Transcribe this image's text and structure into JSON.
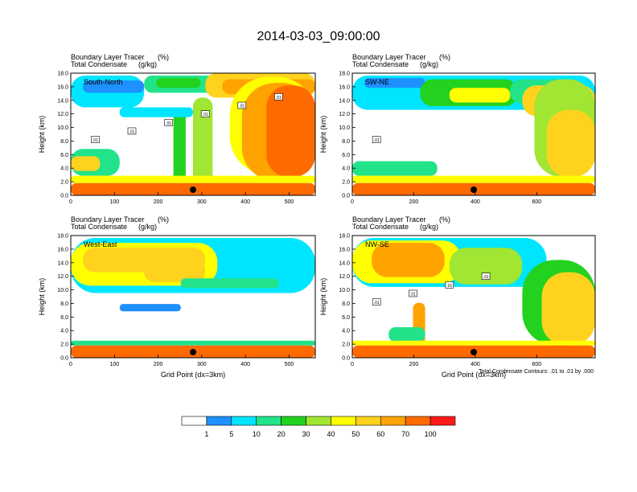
{
  "figure": {
    "title": "2014-03-03_09:00:00",
    "contour_note": "Total Condensate Contours: .01 to .01 by .000"
  },
  "colors": {
    "levels": [
      "#ffffff",
      "#1e90ff",
      "#00e5ff",
      "#22e38a",
      "#22d21e",
      "#a0e632",
      "#ffff00",
      "#ffd21e",
      "#ffa300",
      "#ff6a00",
      "#ff1a1a"
    ]
  },
  "colorbar": {
    "labels": [
      "1",
      "5",
      "10",
      "20",
      "30",
      "40",
      "50",
      "60",
      "70",
      "100"
    ]
  },
  "chart_data": [
    {
      "type": "heatmap",
      "panel_label": "South-North",
      "header_line1": "Boundary Layer Tracer",
      "header_unit1": "(%)",
      "header_line2": "Total Condensate",
      "header_unit2": "(g/kg)",
      "ylabel": "Height (km)",
      "xlabel": "",
      "xlim": [
        0,
        560
      ],
      "ylim": [
        0,
        18
      ],
      "xticks": [
        "0",
        "100",
        "200",
        "300",
        "400",
        "500"
      ],
      "xtick_values": [
        0,
        100,
        200,
        300,
        400,
        500
      ],
      "yticks": [
        "0.0",
        "2.0",
        "4.0",
        "6.0",
        "8.0",
        "10.0",
        "12.0",
        "14.0",
        "16.0",
        "18.0"
      ],
      "contour_labels": [
        "01",
        "01",
        "01",
        "01",
        "01",
        "01"
      ],
      "marker_x": 280
    },
    {
      "type": "heatmap",
      "panel_label": "SW-NE",
      "header_line1": "Boundary Layer Tracer",
      "header_unit1": "(%)",
      "header_line2": "Total Condensate",
      "header_unit2": "(g/kg)",
      "ylabel": "Height (km)",
      "xlabel": "",
      "xlim": [
        0,
        790
      ],
      "ylim": [
        0,
        18
      ],
      "xticks": [
        "0",
        "200",
        "400",
        "600"
      ],
      "xtick_values": [
        0,
        200,
        400,
        600
      ],
      "yticks": [
        "0.0",
        "2.0",
        "4.0",
        "6.0",
        "8.0",
        "10.0",
        "12.0",
        "14.0",
        "16.0",
        "18.0"
      ],
      "contour_labels": [
        "01"
      ],
      "marker_x": 395
    },
    {
      "type": "heatmap",
      "panel_label": "West-East",
      "header_line1": "Boundary Layer Tracer",
      "header_unit1": "(%)",
      "header_line2": "Total Condensate",
      "header_unit2": "(g/kg)",
      "ylabel": "Height (km)",
      "xlabel": "Grid Point (dx=3km)",
      "xlim": [
        0,
        560
      ],
      "ylim": [
        0,
        18
      ],
      "xticks": [
        "0",
        "100",
        "200",
        "300",
        "400",
        "500"
      ],
      "xtick_values": [
        0,
        100,
        200,
        300,
        400,
        500
      ],
      "yticks": [
        "0.0",
        "2.0",
        "4.0",
        "6.0",
        "8.0",
        "10.0",
        "12.0",
        "14.0",
        "16.0",
        "18.0"
      ],
      "contour_labels": [],
      "marker_x": 280
    },
    {
      "type": "heatmap",
      "panel_label": "NW-SE",
      "header_line1": "Boundary Layer Tracer",
      "header_unit1": "(%)",
      "header_line2": "Total Condensate",
      "header_unit2": "(g/kg)",
      "ylabel": "Height (km)",
      "xlabel": "Grid Point (dx=3km)",
      "xlim": [
        0,
        790
      ],
      "ylim": [
        0,
        18
      ],
      "xticks": [
        "0",
        "200",
        "400",
        "600"
      ],
      "xtick_values": [
        0,
        200,
        400,
        600
      ],
      "yticks": [
        "0.0",
        "2.0",
        "4.0",
        "6.0",
        "8.0",
        "10.0",
        "12.0",
        "14.0",
        "16.0",
        "18.0"
      ],
      "contour_labels": [
        "01",
        "01",
        "01",
        "01"
      ],
      "marker_x": 395
    }
  ]
}
